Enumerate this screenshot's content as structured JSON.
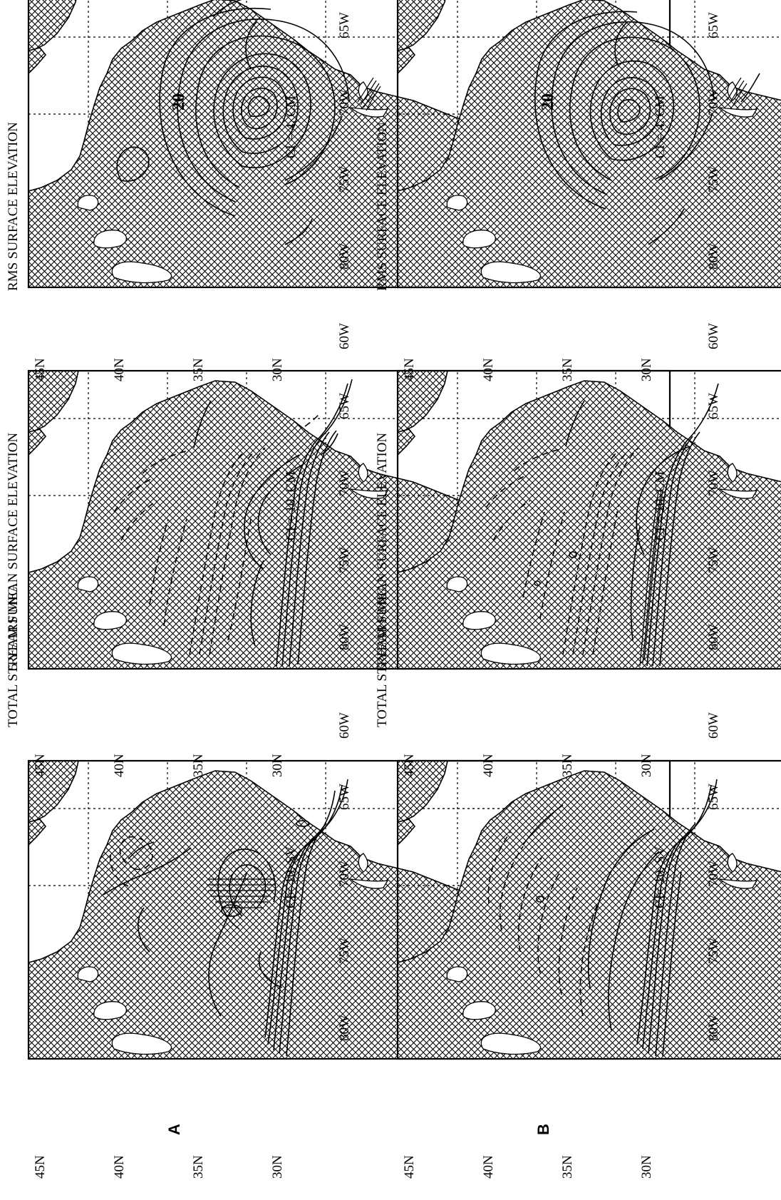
{
  "panel_labels": [
    "A",
    "B"
  ],
  "lat_ticks": [
    "45N",
    "40N",
    "35N",
    "30N"
  ],
  "lon_ticks": [
    "80W",
    "75W",
    "70W",
    "65W",
    "60W"
  ],
  "panels": [
    {
      "id": "a1",
      "title": "TOTAL STREAM FUNC.",
      "ci": "CI= 10. SV"
    },
    {
      "id": "a2",
      "title": "5 YEARS MEAN SURFACE ELEVATION",
      "ci": "CI =   10. CM"
    },
    {
      "id": "a3",
      "title": "RMS SURFACE ELEVATION",
      "ci": "CI =    4. CM",
      "contour_label": "20"
    },
    {
      "id": "b1",
      "title": "TOTAL STREAM FUNC.",
      "ci": "CI= 10. SV"
    },
    {
      "id": "b2",
      "title": "5 YEARS MEAN SURFACE ELEVATION",
      "ci": "CI =   10. CM"
    },
    {
      "id": "b3",
      "title": "RMS SURFACE ELEVATION",
      "ci": "CI =    4. CM",
      "contour_label": "20"
    }
  ]
}
